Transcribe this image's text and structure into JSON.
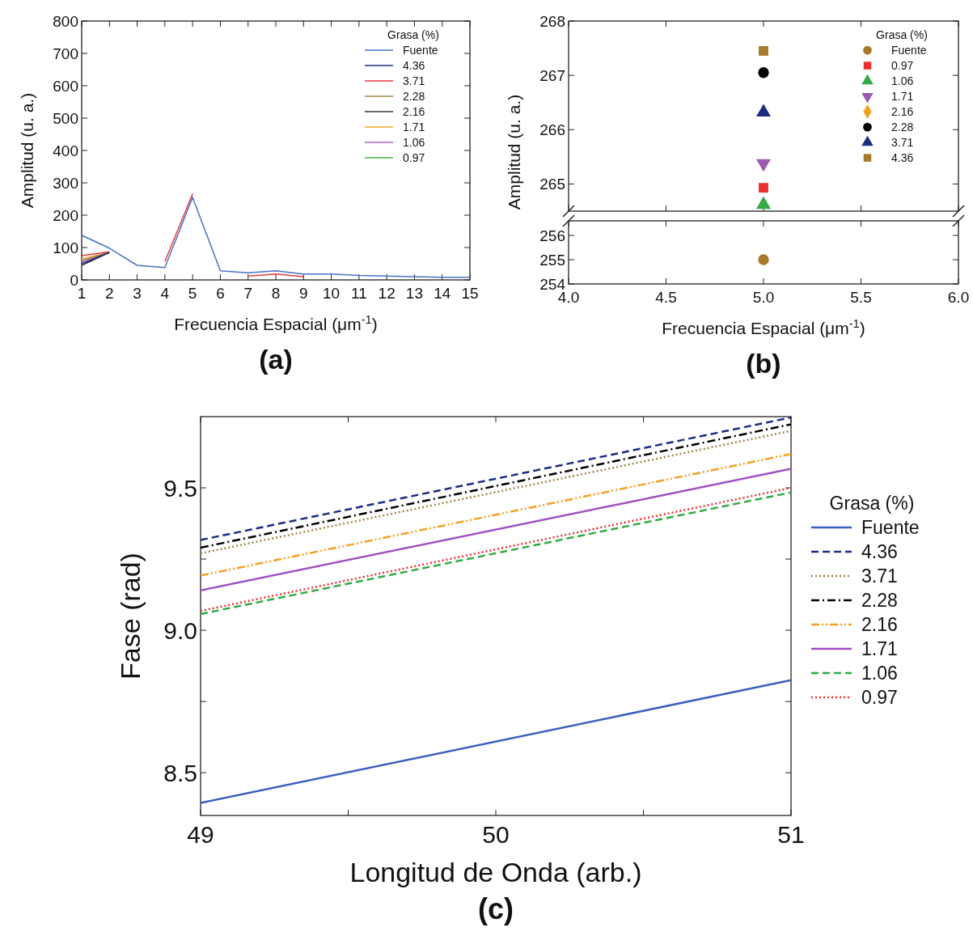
{
  "chart_data": [
    {
      "type": "line",
      "xlabel": "Frecuencia Espacial (μm$^{-1}$)",
      "ylabel": "Amplitud (u. a.)",
      "legend_title": "Grasa (%)",
      "legend": "top right",
      "annotations": [
        "(a)"
      ],
      "x": [
        1,
        2,
        3,
        4,
        5,
        6,
        7,
        8,
        9,
        10,
        11,
        12,
        13,
        14,
        15
      ],
      "xlim": [
        1,
        15
      ],
      "xticks": [
        1,
        2,
        3,
        4,
        5,
        6,
        7,
        8,
        9,
        10,
        11,
        12,
        13,
        14,
        15
      ],
      "ylim": [
        0,
        800
      ],
      "yticks": [
        0,
        100,
        200,
        300,
        400,
        500,
        600,
        700,
        800
      ],
      "series": [
        {
          "name": "Fuente",
          "color": "#4a72c4",
          "values": [
            138,
            98,
            45,
            38,
            255,
            28,
            22,
            28,
            18,
            18,
            14,
            12,
            10,
            8,
            8
          ]
        },
        {
          "name": "4.36",
          "color": "#1c2d80",
          "values": [
            50,
            85,
            null,
            null,
            null,
            null,
            null,
            null,
            null,
            null,
            null,
            null,
            null,
            null,
            null
          ]
        },
        {
          "name": "3.71",
          "color": "#e8383a",
          "values": [
            75,
            87,
            null,
            57,
            266,
            null,
            12,
            18,
            10,
            null,
            null,
            null,
            null,
            null,
            null
          ]
        },
        {
          "name": "2.28",
          "color": "#a0884a",
          "values": [
            60,
            85,
            null,
            null,
            null,
            null,
            null,
            null,
            null,
            null,
            null,
            null,
            null,
            null,
            null
          ]
        },
        {
          "name": "2.16",
          "color": "#333333",
          "values": [
            45,
            85,
            null,
            null,
            null,
            null,
            null,
            null,
            null,
            null,
            null,
            null,
            null,
            null,
            null
          ]
        },
        {
          "name": "1.71",
          "color": "#f5a030",
          "values": [
            65,
            85,
            null,
            null,
            null,
            null,
            null,
            null,
            null,
            null,
            null,
            null,
            null,
            null,
            null
          ]
        },
        {
          "name": "1.06",
          "color": "#a564c4",
          "values": [
            55,
            85,
            null,
            null,
            null,
            null,
            null,
            null,
            null,
            null,
            null,
            null,
            null,
            null,
            null
          ]
        },
        {
          "name": "0.97",
          "color": "#46b446",
          "values": [
            null,
            null,
            null,
            null,
            null,
            null,
            null,
            null,
            null,
            null,
            null,
            null,
            null,
            null,
            null
          ]
        }
      ]
    },
    {
      "type": "scatter",
      "ylabel": "Amplitud (u. a.)",
      "legend_title": "Grasa (%)",
      "legend": "top right",
      "tick_labels": "y",
      "x": [
        5
      ],
      "xlim": [
        4,
        6
      ],
      "xticks": [
        4,
        4.5,
        5,
        5.5,
        6
      ],
      "ylim": [
        264.5,
        268
      ],
      "yticks": [
        265,
        266,
        267,
        268
      ],
      "series": [
        {
          "name": "Fuente",
          "color": "#a57a2a",
          "marker": "circle",
          "values": [
            null
          ]
        },
        {
          "name": "0.97",
          "color": "#e83030",
          "marker": "square",
          "values": [
            264.93
          ]
        },
        {
          "name": "1.06",
          "color": "#33aa44",
          "marker": "triangle",
          "values": [
            264.62
          ]
        },
        {
          "name": "1.71",
          "color": "#9a5ab0",
          "marker": "triangle-down",
          "values": [
            265.38
          ]
        },
        {
          "name": "2.16",
          "color": "#f0a020",
          "marker": "diamond",
          "values": [
            null
          ]
        },
        {
          "name": "2.28",
          "color": "#000000",
          "marker": "circle",
          "values": [
            267.05
          ]
        },
        {
          "name": "3.71",
          "color": "#1c2d80",
          "marker": "triangle",
          "values": [
            266.32
          ]
        },
        {
          "name": "4.36",
          "color": "#a57a2a",
          "marker": "square",
          "values": [
            267.45
          ]
        }
      ]
    },
    {
      "type": "scatter",
      "xlabel": "Frecuencia Espacial (μm$^{-1}$)",
      "annotations": [
        "(b)"
      ],
      "x": [
        5
      ],
      "xlim": [
        4,
        6
      ],
      "xticks": [
        {
          "value": 4,
          "label": "4.0"
        },
        {
          "value": 4.5,
          "label": "4.5"
        },
        {
          "value": 5,
          "label": "5.0"
        },
        {
          "value": 5.5,
          "label": "5.5"
        },
        {
          "value": 6,
          "label": "6.0"
        }
      ],
      "ylim": [
        254,
        256.6
      ],
      "yticks": [
        254,
        255,
        256
      ],
      "series": [
        {
          "color": "#a57a2a",
          "marker": "circle",
          "values": [
            255
          ]
        }
      ]
    },
    {
      "type": "line",
      "xlabel": "Longitud de Onda (arb.)",
      "ylabel": "Fase (rad)",
      "legend_title": "Grasa (%)",
      "legend": "right",
      "annotations": [
        "(c)"
      ],
      "x": [
        49,
        51
      ],
      "xlim": [
        49,
        51
      ],
      "xticks": [
        49,
        {
          "value": 49.5,
          "label": null
        },
        50,
        {
          "value": 50.5,
          "label": null
        },
        51
      ],
      "ylim": [
        8.35,
        9.75
      ],
      "yticks": [
        {
          "value": 8.5,
          "label": "8.5"
        },
        {
          "value": 8.75,
          "label": null
        },
        {
          "value": 9,
          "label": "9.0"
        },
        {
          "value": 9.25,
          "label": null
        },
        {
          "value": 9.5,
          "label": "9.5"
        }
      ],
      "series": [
        {
          "name": "Fuente",
          "color": "#3b5fc0",
          "line_style": "solid",
          "values": [
            8.394,
            8.825
          ]
        },
        {
          "name": "4.36",
          "color": "#1c2d80",
          "line_style": "dashed",
          "values": [
            9.317,
            9.747
          ]
        },
        {
          "name": "3.71",
          "color": "#a0884a",
          "line_style": "dotted",
          "values": [
            9.27,
            9.7
          ]
        },
        {
          "name": "2.28",
          "color": "#000000",
          "line_style": "dashdot",
          "values": [
            9.29,
            9.723
          ]
        },
        {
          "name": "2.16",
          "color": "#f5a020",
          "line_style": "dashdotdot",
          "values": [
            9.192,
            9.619
          ]
        },
        {
          "name": "1.71",
          "color": "#a050c0",
          "line_style": "solid",
          "values": [
            9.14,
            9.567
          ]
        },
        {
          "name": "1.06",
          "color": "#33aa44",
          "line_style": "dashed",
          "values": [
            9.057,
            9.484
          ]
        },
        {
          "name": "0.97",
          "color": "#e83030",
          "line_style": "dotted",
          "values": [
            9.068,
            9.5
          ]
        }
      ]
    }
  ]
}
